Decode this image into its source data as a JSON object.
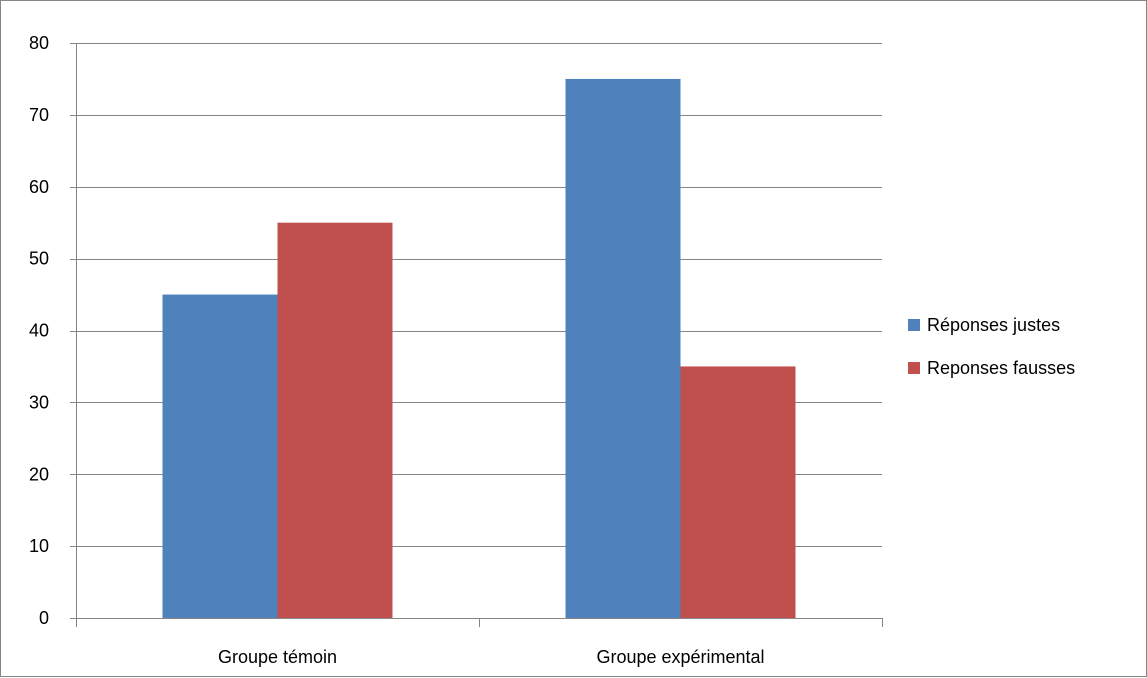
{
  "chart_data": {
    "type": "bar",
    "title": "",
    "xlabel": "",
    "ylabel": "",
    "categories": [
      "Groupe témoin",
      "Groupe expérimental"
    ],
    "series": [
      {
        "name": "Réponses justes",
        "values": [
          45,
          75
        ],
        "color": "#4f81bd"
      },
      {
        "name": "Reponses fausses",
        "values": [
          55,
          35
        ],
        "color": "#c0504d"
      }
    ],
    "ylim": [
      0,
      80
    ],
    "yticks": [
      "0",
      "10",
      "20",
      "30",
      "40",
      "50",
      "60",
      "70",
      "80"
    ],
    "grid": true,
    "legend_position": "right"
  }
}
